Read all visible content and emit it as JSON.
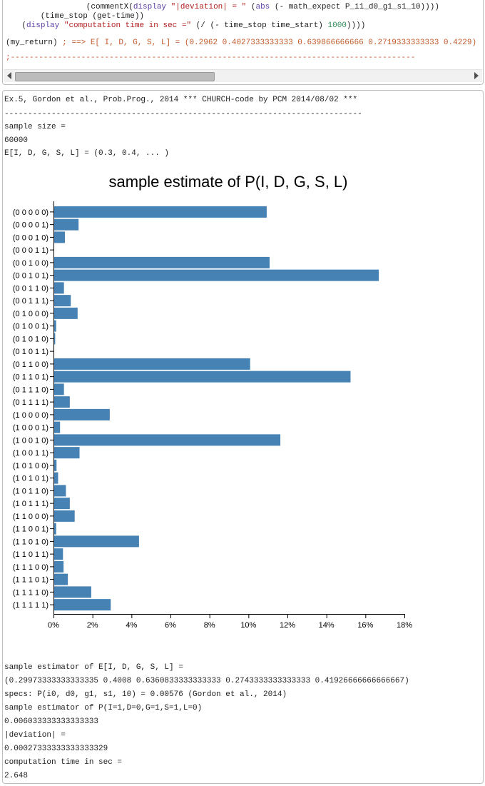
{
  "editor": {
    "line1": {
      "pre": "        (commentX(",
      "kw1": "display",
      "s1": " ",
      "str1": "\"|deviation| = \"",
      "s2": " (",
      "kw2": "abs",
      "rest": " (- math_expect P_i1_d0_g1_s1_10))))"
    },
    "line2": {
      "text": "        (time_stop (get-time))"
    },
    "line3": {
      "pre": "    (",
      "kw": "display",
      "s": " ",
      "str": "\"computation time in sec =\"",
      "mid": " (/ (- time_stop time_start) ",
      "num": "1000",
      "end": "))))"
    },
    "line4": {
      "pre": "(my_return) ",
      "cmt": "; ==> E[ I, D, G, S, L] = (0.2962 0.4027333333333 0.639866666666 0.2719333333333 0.4229)"
    },
    "line5": {
      "text": ";--------------------------------------------------------------------------------------"
    }
  },
  "output": {
    "header": "Ex.5, Gordon et al., Prob.Prog., 2014 *** CHURCH-code by PCM 2014/08/02 ***",
    "rule": "----------------------------------------------------------------------------",
    "lines_top": [
      "sample size =",
      "60000",
      "E[I, D, G, S, L] = (0.3, 0.4, ... )"
    ],
    "lines_bottom": [
      "sample estimator of E[I, D, G, S, L] =",
      "(0.29973333333333335 0.4008 0.6360833333333333 0.2743333333333333 0.41926666666666667)",
      "specs: P(i0, d0, g1, s1, 10) = 0.00576 (Gordon et al., 2014)",
      "sample estimator of P(I=1,D=0,G=1,S=1,L=0)",
      "0.006033333333333333",
      "|deviation| =",
      "0.00027333333333333329",
      "computation time in sec =",
      "2.648"
    ]
  },
  "chart_data": {
    "type": "bar",
    "orientation": "horizontal",
    "title": "sample estimate of P(I, D, G, S, L)",
    "xlabel": "",
    "ylabel": "",
    "xlim": [
      0,
      18
    ],
    "x_tick_labels": [
      "0%",
      "2%",
      "4%",
      "6%",
      "8%",
      "10%",
      "12%",
      "14%",
      "16%",
      "18%"
    ],
    "categories": [
      "(0 0 0 0 0)",
      "(0 0 0 0 1)",
      "(0 0 0 1 0)",
      "(0 0 0 1 1)",
      "(0 0 1 0 0)",
      "(0 0 1 0 1)",
      "(0 0 1 1 0)",
      "(0 0 1 1 1)",
      "(0 1 0 0 0)",
      "(0 1 0 0 1)",
      "(0 1 0 1 0)",
      "(0 1 0 1 1)",
      "(0 1 1 0 0)",
      "(0 1 1 0 1)",
      "(0 1 1 1 0)",
      "(0 1 1 1 1)",
      "(1 0 0 0 0)",
      "(1 0 0 0 1)",
      "(1 0 0 1 0)",
      "(1 0 0 1 1)",
      "(1 0 1 0 0)",
      "(1 0 1 0 1)",
      "(1 0 1 1 0)",
      "(1 0 1 1 1)",
      "(1 1 0 0 0)",
      "(1 1 0 0 1)",
      "(1 1 0 1 0)",
      "(1 1 0 1 1)",
      "(1 1 1 0 0)",
      "(1 1 1 0 1)",
      "(1 1 1 1 0)",
      "(1 1 1 1 1)"
    ],
    "values": [
      10.9,
      1.25,
      0.55,
      0.0,
      11.05,
      16.65,
      0.5,
      0.85,
      1.2,
      0.1,
      0.05,
      0.0,
      10.05,
      15.2,
      0.5,
      0.8,
      2.85,
      0.3,
      11.6,
      1.3,
      0.12,
      0.2,
      0.6,
      0.8,
      1.05,
      0.1,
      4.35,
      0.45,
      0.48,
      0.7,
      1.9,
      2.9
    ],
    "bar_color": "#4682b4",
    "grid": false
  }
}
